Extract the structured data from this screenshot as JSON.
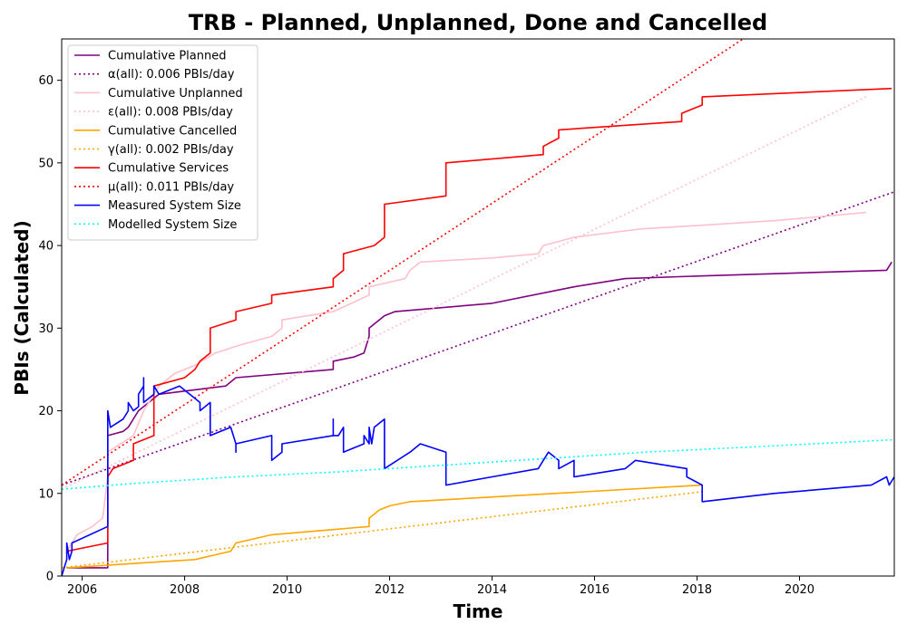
{
  "chart_data": {
    "type": "line",
    "title": "TRB - Planned, Unplanned, Done  and Cancelled",
    "xlabel": "Time",
    "ylabel": "PBIs (Calculated)",
    "xlim": [
      2005.6,
      2021.85
    ],
    "ylim": [
      0,
      65
    ],
    "xticks": [
      2006,
      2008,
      2010,
      2012,
      2014,
      2016,
      2018,
      2020
    ],
    "yticks": [
      0,
      10,
      20,
      30,
      40,
      50,
      60
    ],
    "legend_position": "top-left",
    "grid": false,
    "series": [
      {
        "name": "Cumulative Planned",
        "color": "#800080",
        "style": "solid",
        "points": [
          [
            2005.7,
            1
          ],
          [
            2006.5,
            1
          ],
          [
            2006.5,
            17
          ],
          [
            2006.8,
            17.5
          ],
          [
            2006.9,
            18
          ],
          [
            2007.1,
            20
          ],
          [
            2007.3,
            21
          ],
          [
            2007.5,
            22
          ],
          [
            2008.8,
            23
          ],
          [
            2008.9,
            23.5
          ],
          [
            2009.0,
            24
          ],
          [
            2010.9,
            25
          ],
          [
            2010.9,
            26
          ],
          [
            2011.3,
            26.5
          ],
          [
            2011.5,
            27
          ],
          [
            2011.6,
            29
          ],
          [
            2011.6,
            30
          ],
          [
            2011.9,
            31.5
          ],
          [
            2012.1,
            32
          ],
          [
            2014.0,
            33
          ],
          [
            2015.6,
            35
          ],
          [
            2016.6,
            36
          ],
          [
            2018.0,
            36.3
          ],
          [
            2021.7,
            37
          ],
          [
            2021.8,
            38
          ]
        ]
      },
      {
        "name": "α(all): 0.006 PBIs/day",
        "color": "#800080",
        "style": "dotted",
        "points": [
          [
            2005.6,
            11
          ],
          [
            2021.85,
            46.5
          ]
        ]
      },
      {
        "name": "Cumulative Unplanned",
        "color": "#ffc0cb",
        "style": "solid",
        "points": [
          [
            2005.7,
            3
          ],
          [
            2005.9,
            5
          ],
          [
            2006.2,
            6
          ],
          [
            2006.4,
            7
          ],
          [
            2006.5,
            12
          ],
          [
            2006.5,
            15
          ],
          [
            2007.0,
            17
          ],
          [
            2007.2,
            20
          ],
          [
            2007.5,
            23
          ],
          [
            2007.8,
            24.5
          ],
          [
            2008.2,
            25.5
          ],
          [
            2008.6,
            27
          ],
          [
            2009.1,
            28
          ],
          [
            2009.7,
            29
          ],
          [
            2009.9,
            30
          ],
          [
            2009.9,
            31
          ],
          [
            2010.9,
            32
          ],
          [
            2011.6,
            34
          ],
          [
            2011.6,
            35
          ],
          [
            2012.3,
            36
          ],
          [
            2012.4,
            37
          ],
          [
            2012.6,
            38
          ],
          [
            2014.0,
            38.5
          ],
          [
            2014.9,
            39
          ],
          [
            2015.0,
            40
          ],
          [
            2015.6,
            41
          ],
          [
            2016.9,
            42
          ],
          [
            2018.2,
            42.5
          ],
          [
            2019.5,
            43
          ],
          [
            2021.3,
            44
          ]
        ]
      },
      {
        "name": "ε(all): 0.008 PBIs/day",
        "color": "#ffc0cb",
        "style": "dotted",
        "points": [
          [
            2005.6,
            10.5
          ],
          [
            2021.3,
            58
          ]
        ]
      },
      {
        "name": "Cumulative Cancelled",
        "color": "#ffa500",
        "style": "solid",
        "points": [
          [
            2005.7,
            1
          ],
          [
            2008.2,
            2
          ],
          [
            2008.9,
            3
          ],
          [
            2009.0,
            4
          ],
          [
            2009.7,
            5
          ],
          [
            2011.6,
            6
          ],
          [
            2011.6,
            7
          ],
          [
            2011.8,
            8
          ],
          [
            2012.0,
            8.5
          ],
          [
            2012.4,
            9
          ],
          [
            2018.1,
            11
          ]
        ]
      },
      {
        "name": "γ(all): 0.002 PBIs/day",
        "color": "#ffa500",
        "style": "dotted",
        "points": [
          [
            2005.6,
            1
          ],
          [
            2018.1,
            10.2
          ]
        ]
      },
      {
        "name": "Cumulative Services",
        "color": "#ff0000",
        "style": "solid",
        "points": [
          [
            2005.7,
            3
          ],
          [
            2006.5,
            4
          ],
          [
            2006.5,
            12
          ],
          [
            2006.6,
            13
          ],
          [
            2007.0,
            14
          ],
          [
            2007.0,
            16
          ],
          [
            2007.4,
            17
          ],
          [
            2007.4,
            23
          ],
          [
            2008.0,
            24
          ],
          [
            2008.2,
            25
          ],
          [
            2008.3,
            26
          ],
          [
            2008.5,
            27
          ],
          [
            2008.5,
            30
          ],
          [
            2009.0,
            31
          ],
          [
            2009.0,
            32
          ],
          [
            2009.7,
            33
          ],
          [
            2009.7,
            34
          ],
          [
            2010.9,
            35
          ],
          [
            2010.9,
            36
          ],
          [
            2011.1,
            37
          ],
          [
            2011.1,
            39
          ],
          [
            2011.7,
            40
          ],
          [
            2011.9,
            41
          ],
          [
            2011.9,
            45
          ],
          [
            2013.1,
            46
          ],
          [
            2013.1,
            49
          ],
          [
            2013.1,
            50
          ],
          [
            2015.0,
            51
          ],
          [
            2015.0,
            52
          ],
          [
            2015.3,
            53
          ],
          [
            2015.3,
            54
          ],
          [
            2017.7,
            55
          ],
          [
            2017.7,
            56
          ],
          [
            2018.1,
            57
          ],
          [
            2018.1,
            58
          ],
          [
            2021.8,
            59
          ]
        ]
      },
      {
        "name": "μ(all): 0.011 PBIs/day",
        "color": "#ff0000",
        "style": "dotted",
        "points": [
          [
            2005.6,
            11
          ],
          [
            2018.9,
            65
          ]
        ]
      },
      {
        "name": "Measured System Size",
        "color": "#0000ff",
        "style": "solid",
        "points": [
          [
            2005.6,
            0
          ],
          [
            2005.7,
            2
          ],
          [
            2005.7,
            4
          ],
          [
            2005.75,
            2
          ],
          [
            2005.8,
            3
          ],
          [
            2005.8,
            4
          ],
          [
            2006.5,
            6
          ],
          [
            2006.5,
            20
          ],
          [
            2006.55,
            18
          ],
          [
            2006.8,
            19
          ],
          [
            2006.9,
            20
          ],
          [
            2006.9,
            21
          ],
          [
            2007.0,
            20
          ],
          [
            2007.1,
            20.5
          ],
          [
            2007.1,
            22
          ],
          [
            2007.2,
            23
          ],
          [
            2007.2,
            24
          ],
          [
            2007.2,
            21
          ],
          [
            2007.4,
            22
          ],
          [
            2007.4,
            23
          ],
          [
            2007.5,
            22
          ],
          [
            2007.9,
            23
          ],
          [
            2008.1,
            22
          ],
          [
            2008.3,
            21
          ],
          [
            2008.3,
            20
          ],
          [
            2008.5,
            21
          ],
          [
            2008.5,
            17
          ],
          [
            2008.9,
            18
          ],
          [
            2009.0,
            16
          ],
          [
            2009.0,
            15
          ],
          [
            2009.0,
            16
          ],
          [
            2009.7,
            17
          ],
          [
            2009.7,
            14
          ],
          [
            2009.9,
            15
          ],
          [
            2009.9,
            16
          ],
          [
            2010.9,
            17
          ],
          [
            2010.9,
            19
          ],
          [
            2010.9,
            17
          ],
          [
            2011.0,
            17
          ],
          [
            2011.1,
            18
          ],
          [
            2011.1,
            15
          ],
          [
            2011.5,
            16
          ],
          [
            2011.5,
            17
          ],
          [
            2011.6,
            16
          ],
          [
            2011.6,
            18
          ],
          [
            2011.65,
            16
          ],
          [
            2011.7,
            18
          ],
          [
            2011.9,
            19
          ],
          [
            2011.9,
            13
          ],
          [
            2012.4,
            15
          ],
          [
            2012.6,
            16
          ],
          [
            2013.1,
            15
          ],
          [
            2013.1,
            11
          ],
          [
            2014.0,
            12
          ],
          [
            2014.9,
            13
          ],
          [
            2015.1,
            15
          ],
          [
            2015.3,
            14
          ],
          [
            2015.3,
            13
          ],
          [
            2015.6,
            14
          ],
          [
            2015.6,
            12
          ],
          [
            2016.6,
            13
          ],
          [
            2016.8,
            14
          ],
          [
            2017.8,
            13
          ],
          [
            2017.8,
            12
          ],
          [
            2018.1,
            11
          ],
          [
            2018.1,
            9
          ],
          [
            2019.5,
            10
          ],
          [
            2021.4,
            11
          ],
          [
            2021.7,
            12
          ],
          [
            2021.75,
            11
          ],
          [
            2021.85,
            12
          ]
        ]
      },
      {
        "name": "Modelled System Size",
        "color": "#00ffff",
        "style": "dotted",
        "points": [
          [
            2005.6,
            10.5
          ],
          [
            2007.0,
            11.2
          ],
          [
            2009.0,
            12
          ],
          [
            2011.0,
            12.6
          ],
          [
            2013.0,
            13.4
          ],
          [
            2015.0,
            14.2
          ],
          [
            2017.0,
            15
          ],
          [
            2019.0,
            15.6
          ],
          [
            2021.85,
            16.5
          ]
        ]
      }
    ]
  }
}
